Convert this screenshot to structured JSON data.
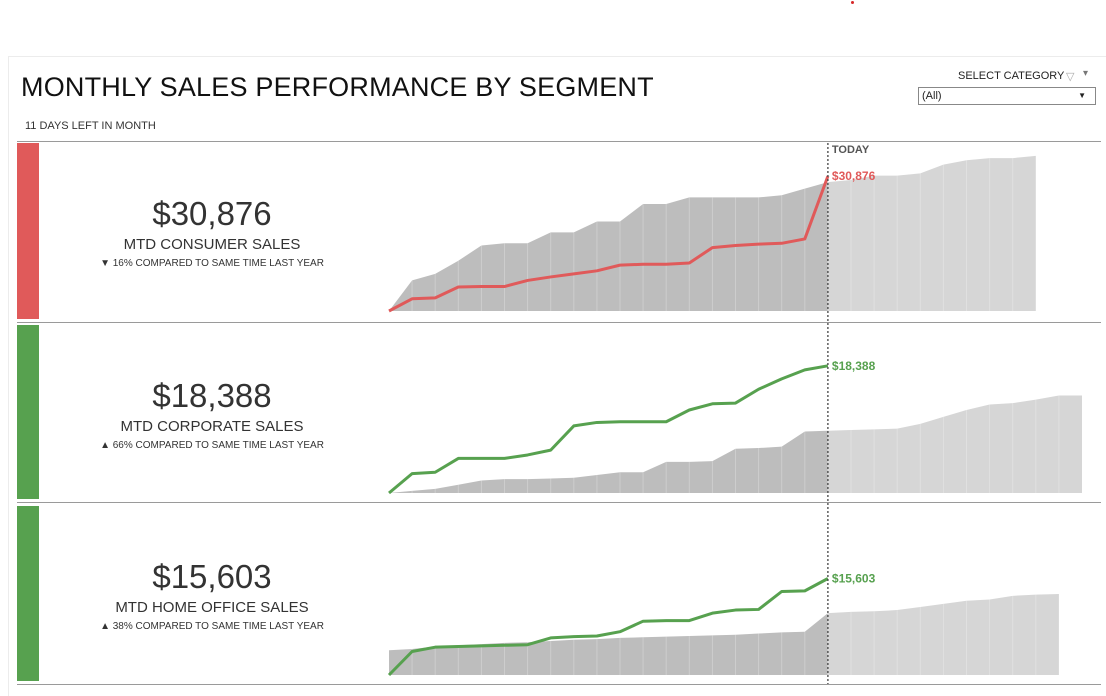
{
  "header": {
    "title": "MONTHLY SALES PERFORMANCE BY SEGMENT",
    "subtitle": "11 DAYS LEFT IN MONTH"
  },
  "filter": {
    "label": "SELECT CATEGORY",
    "value": "(All)",
    "funnel_icon": "filter-icon",
    "menu_icon": "chevron-down-icon"
  },
  "today_label": "TODAY",
  "colors": {
    "down": "#e05a5a",
    "up": "#57a14f",
    "area_past": "#bdbdbd",
    "area_future": "#d6d6d6"
  },
  "segments": [
    {
      "value": "$30,876",
      "label": "MTD CONSUMER SALES",
      "arrow": "▼",
      "compare": "16% COMPARED TO SAME TIME LAST YEAR",
      "status": "down"
    },
    {
      "value": "$18,388",
      "label": "MTD CORPORATE SALES",
      "arrow": "▲",
      "compare": "66% COMPARED TO SAME TIME LAST YEAR",
      "status": "up"
    },
    {
      "value": "$15,603",
      "label": "MTD HOME OFFICE SALES",
      "arrow": "▲",
      "compare": "38% COMPARED TO SAME TIME LAST YEAR",
      "status": "up"
    }
  ],
  "chart_data": [
    {
      "type": "area",
      "series": [
        {
          "name": "",
          "values": [
            0,
            7000,
            8500,
            11500,
            15000,
            15500,
            15500,
            18000,
            18000,
            20500,
            20500,
            24500,
            24500,
            26000,
            26000,
            26000,
            26000,
            26500,
            28000,
            29500,
            30000,
            31000,
            31000,
            31500,
            33500,
            34500,
            35000,
            35000,
            35500
          ]
        },
        {
          "name": "",
          "values": [
            0,
            2800,
            3000,
            5500,
            5600,
            5600,
            7000,
            7800,
            8500,
            9200,
            10500,
            10700,
            10700,
            11000,
            14500,
            15000,
            15300,
            15500,
            16500,
            30876
          ]
        }
      ],
      "today_index": 19,
      "end_label": "$30,876",
      "ylim": [
        0,
        38000
      ]
    },
    {
      "type": "area",
      "series": [
        {
          "name": "",
          "values": [
            0,
            300,
            600,
            1200,
            1800,
            2000,
            2000,
            2100,
            2200,
            2600,
            3000,
            3000,
            4500,
            4500,
            4600,
            6400,
            6500,
            6700,
            8900,
            9000,
            9100,
            9200,
            9300,
            10000,
            11000,
            12000,
            12800,
            13000,
            13500,
            14100,
            14100
          ]
        },
        {
          "name": "",
          "values": [
            0,
            2800,
            3000,
            5000,
            5000,
            5000,
            5500,
            6200,
            9700,
            10200,
            10300,
            10300,
            10300,
            12000,
            12900,
            13000,
            15000,
            16500,
            17800,
            18388
          ]
        }
      ],
      "today_index": 19,
      "end_label": "$18,388",
      "ylim": [
        0,
        24000
      ]
    },
    {
      "type": "area",
      "series": [
        {
          "name": "",
          "values": [
            4000,
            4200,
            4600,
            4800,
            5000,
            5200,
            5300,
            5500,
            5700,
            5800,
            6000,
            6100,
            6200,
            6300,
            6400,
            6500,
            6700,
            6900,
            7000,
            10000,
            10200,
            10300,
            10500,
            11000,
            11500,
            12000,
            12200,
            12800,
            13000,
            13100
          ]
        },
        {
          "name": "",
          "values": [
            0,
            3800,
            4500,
            4600,
            4700,
            4800,
            4900,
            6000,
            6200,
            6300,
            7000,
            8700,
            8800,
            8800,
            10000,
            10500,
            10600,
            13500,
            13600,
            15603
          ]
        }
      ],
      "today_index": 19,
      "end_label": "$15,603",
      "ylim": [
        0,
        27000
      ]
    }
  ]
}
